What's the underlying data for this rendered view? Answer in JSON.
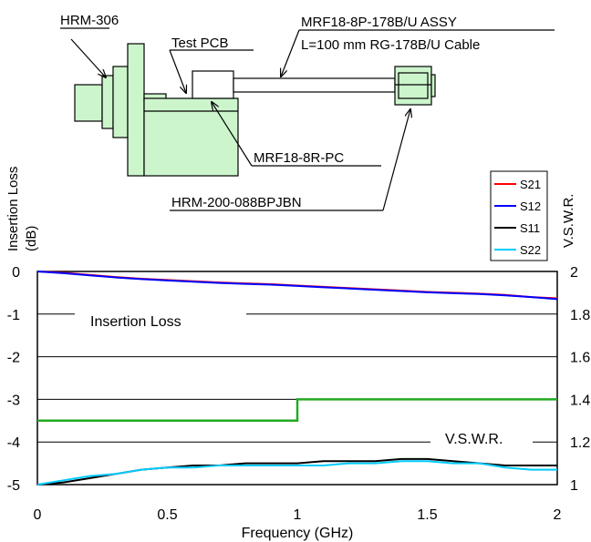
{
  "diagram": {
    "labels": {
      "connector_top": "HRM-306",
      "test_pcb": "Test PCB",
      "assy_line1": "MRF18-8P-178B/U ASSY",
      "assy_line2": "L=100 mm RG-178B/U Cable",
      "receptacle": "MRF18-8R-PC",
      "adapter": "HRM-200-088BPJBN"
    },
    "fill_color": "#ccf5cc"
  },
  "chart_data": {
    "type": "line",
    "xlabel": "Frequency (GHz)",
    "ylabel_left_line1": "Insertion Loss",
    "ylabel_left_line2": "(dB)",
    "ylabel_right": "V.S.W.R.",
    "xlim": [
      0,
      2
    ],
    "ylim_left": [
      -5,
      0
    ],
    "ylim_right": [
      1,
      2
    ],
    "x_ticks": [
      "0",
      "0.5",
      "1",
      "1.5",
      "2"
    ],
    "x_tick_values": [
      0,
      0.5,
      1,
      1.5,
      2
    ],
    "y_ticks_left": [
      "0",
      "-1",
      "-2",
      "-3",
      "-4",
      "-5"
    ],
    "y_tick_values_left": [
      0,
      -1,
      -2,
      -3,
      -4,
      -5
    ],
    "y_ticks_right": [
      "2",
      "1.8",
      "1.6",
      "1.4",
      "1.2",
      "1"
    ],
    "y_tick_values_right": [
      2,
      1.8,
      1.6,
      1.4,
      1.2,
      1
    ],
    "grid": "horizontal",
    "legend_position": "top-right",
    "annotations": {
      "insertion_loss": "Insertion Loss",
      "vswr": "V.S.W.R."
    },
    "series": [
      {
        "name": "S21",
        "color": "#ff0000",
        "axis": "left",
        "x": [
          0,
          0.1,
          0.2,
          0.3,
          0.4,
          0.5,
          0.6,
          0.7,
          0.8,
          0.9,
          1.0,
          1.1,
          1.2,
          1.3,
          1.4,
          1.5,
          1.6,
          1.7,
          1.8,
          1.9,
          2.0
        ],
        "y": [
          0,
          -0.03,
          -0.08,
          -0.13,
          -0.17,
          -0.2,
          -0.23,
          -0.26,
          -0.28,
          -0.3,
          -0.33,
          -0.36,
          -0.39,
          -0.42,
          -0.45,
          -0.48,
          -0.5,
          -0.52,
          -0.55,
          -0.6,
          -0.63
        ]
      },
      {
        "name": "S12",
        "color": "#0000ff",
        "axis": "left",
        "x": [
          0,
          0.1,
          0.2,
          0.3,
          0.4,
          0.5,
          0.6,
          0.7,
          0.8,
          0.9,
          1.0,
          1.1,
          1.2,
          1.3,
          1.4,
          1.5,
          1.6,
          1.7,
          1.8,
          1.9,
          2.0
        ],
        "y": [
          0,
          -0.04,
          -0.09,
          -0.14,
          -0.18,
          -0.21,
          -0.24,
          -0.27,
          -0.29,
          -0.31,
          -0.34,
          -0.37,
          -0.4,
          -0.43,
          -0.46,
          -0.49,
          -0.51,
          -0.53,
          -0.56,
          -0.6,
          -0.65
        ]
      },
      {
        "name": "S11",
        "color": "#000000",
        "axis": "right",
        "x": [
          0,
          0.1,
          0.2,
          0.3,
          0.4,
          0.5,
          0.6,
          0.7,
          0.8,
          0.9,
          1.0,
          1.1,
          1.2,
          1.3,
          1.4,
          1.5,
          1.6,
          1.7,
          1.8,
          1.9,
          2.0
        ],
        "y": [
          1.0,
          1.01,
          1.03,
          1.05,
          1.07,
          1.08,
          1.09,
          1.09,
          1.1,
          1.1,
          1.1,
          1.11,
          1.11,
          1.11,
          1.12,
          1.12,
          1.11,
          1.1,
          1.09,
          1.09,
          1.09
        ]
      },
      {
        "name": "S22",
        "color": "#00ccff",
        "axis": "right",
        "x": [
          0,
          0.1,
          0.2,
          0.3,
          0.4,
          0.5,
          0.6,
          0.7,
          0.8,
          0.9,
          1.0,
          1.1,
          1.2,
          1.3,
          1.4,
          1.5,
          1.6,
          1.7,
          1.8,
          1.9,
          2.0
        ],
        "y": [
          1.0,
          1.02,
          1.04,
          1.05,
          1.07,
          1.08,
          1.08,
          1.09,
          1.09,
          1.09,
          1.09,
          1.09,
          1.1,
          1.1,
          1.11,
          1.11,
          1.1,
          1.1,
          1.08,
          1.07,
          1.07
        ]
      },
      {
        "name": "",
        "color": "#22aa22",
        "axis": "left",
        "step": true,
        "x": [
          0,
          1.0,
          1.0,
          2.0
        ],
        "y": [
          -3.5,
          -3.5,
          -3.0,
          -3.0
        ]
      }
    ]
  }
}
